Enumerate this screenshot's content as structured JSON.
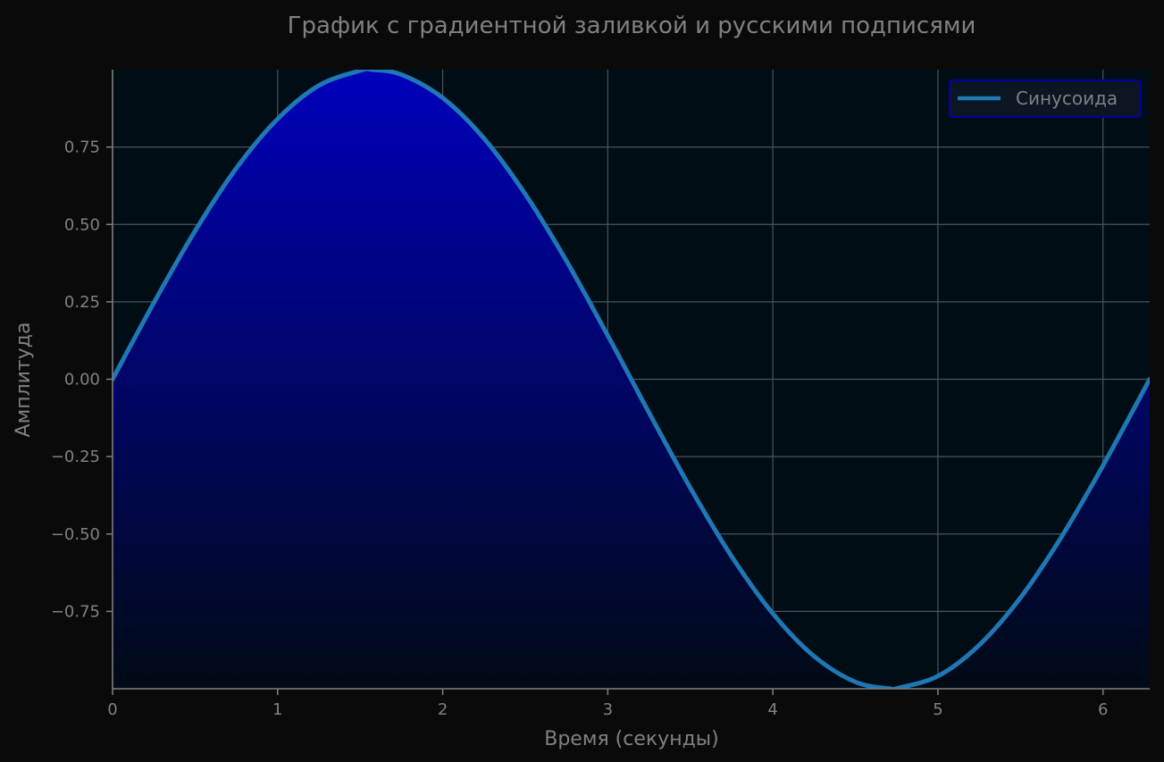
{
  "chart_data": {
    "type": "line",
    "title": "График с градиентной заливкой и русскими подписями",
    "xlabel": "Время (секунды)",
    "ylabel": "Амплитуда",
    "xlim": [
      0,
      6.283
    ],
    "ylim": [
      -1.0,
      1.0
    ],
    "grid": true,
    "legend_position": "top-right",
    "fill": "gradient between curve and lower axis limit",
    "x_ticks": [
      {
        "value": 0,
        "label": "0"
      },
      {
        "value": 1,
        "label": "1"
      },
      {
        "value": 2,
        "label": "2"
      },
      {
        "value": 3,
        "label": "3"
      },
      {
        "value": 4,
        "label": "4"
      },
      {
        "value": 5,
        "label": "5"
      },
      {
        "value": 6,
        "label": "6"
      }
    ],
    "y_ticks": [
      {
        "value": 0.75,
        "label": "0.75"
      },
      {
        "value": 0.5,
        "label": "0.50"
      },
      {
        "value": 0.25,
        "label": "0.25"
      },
      {
        "value": 0.0,
        "label": "0.00"
      },
      {
        "value": -0.25,
        "label": "−0.25"
      },
      {
        "value": -0.5,
        "label": "−0.50"
      },
      {
        "value": -0.75,
        "label": "−0.75"
      }
    ],
    "series": [
      {
        "name": "Синусоида",
        "color": "#1f77b4",
        "x": [
          0,
          0.25,
          0.5,
          0.75,
          1.0,
          1.25,
          1.5,
          1.571,
          1.75,
          2.0,
          2.25,
          2.5,
          2.75,
          3.0,
          3.142,
          3.25,
          3.5,
          3.75,
          4.0,
          4.25,
          4.5,
          4.712,
          4.75,
          5.0,
          5.25,
          5.5,
          5.75,
          6.0,
          6.283
        ],
        "y": [
          0.0,
          0.247,
          0.479,
          0.682,
          0.841,
          0.949,
          0.997,
          1.0,
          0.984,
          0.909,
          0.778,
          0.598,
          0.382,
          0.141,
          0.0,
          -0.108,
          -0.351,
          -0.572,
          -0.757,
          -0.895,
          -0.978,
          -1.0,
          -0.999,
          -0.959,
          -0.859,
          -0.706,
          -0.508,
          -0.279,
          0.0
        ]
      }
    ]
  },
  "colors": {
    "figure_background": "#0a0a0a",
    "plot_background": "#000d14",
    "grid": "#4a5560",
    "axis": "#808080",
    "text": "#808080",
    "fill_top": "#0000bb",
    "fill_bottom": "#000a14",
    "legend_border": "#0000aa",
    "legend_background": "#0b1622"
  }
}
